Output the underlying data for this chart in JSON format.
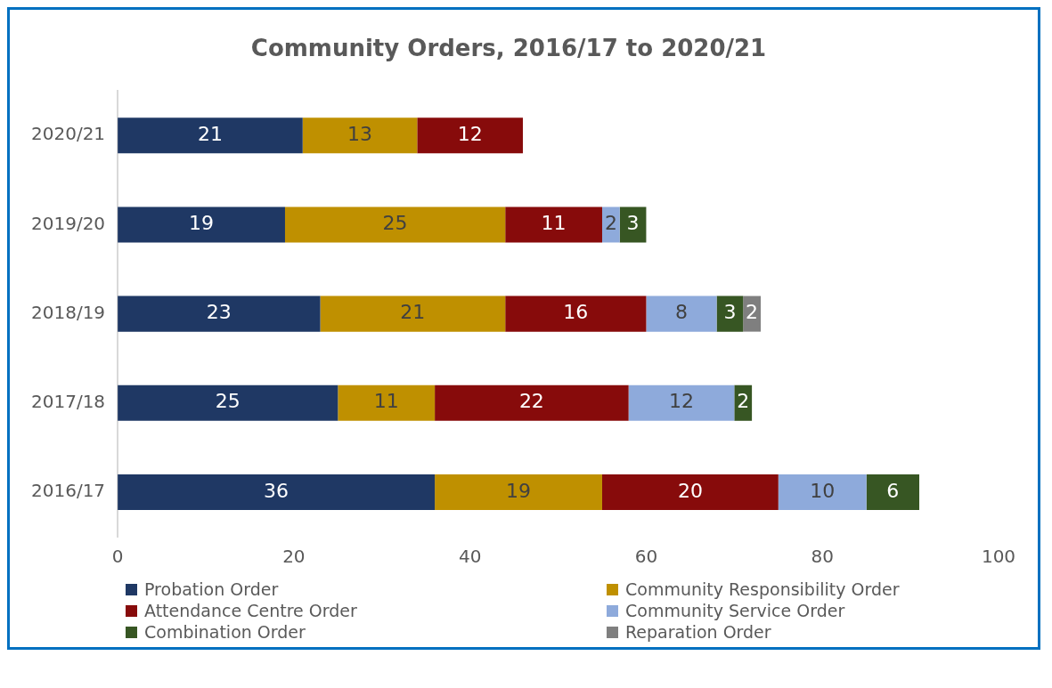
{
  "chart_data": {
    "type": "bar",
    "orientation": "horizontal",
    "stacked": true,
    "title": "Community Orders, 2016/17 to 2020/21",
    "categories": [
      "2020/21",
      "2019/20",
      "2018/19",
      "2017/18",
      "2016/17"
    ],
    "series": [
      {
        "name": "Probation Order",
        "color": "#1f3864",
        "values": [
          21,
          19,
          23,
          25,
          36
        ]
      },
      {
        "name": "Community Responsibility Order",
        "color": "#bf9000",
        "values": [
          13,
          25,
          21,
          11,
          19
        ]
      },
      {
        "name": "Attendance Centre Order",
        "color": "#870b0b",
        "values": [
          12,
          11,
          16,
          22,
          20
        ]
      },
      {
        "name": "Community Service Order",
        "color": "#8eaadb",
        "values": [
          null,
          2,
          8,
          12,
          10
        ]
      },
      {
        "name": "Combination Order",
        "color": "#375623",
        "values": [
          null,
          3,
          3,
          2,
          6
        ]
      },
      {
        "name": "Reparation Order",
        "color": "#7f7f7f",
        "values": [
          null,
          null,
          2,
          null,
          null
        ]
      }
    ],
    "xlim": [
      0,
      100
    ],
    "xticks": [
      0,
      20,
      40,
      60,
      80,
      100
    ],
    "grid": false,
    "legend": "bottom",
    "data_labels": true
  }
}
